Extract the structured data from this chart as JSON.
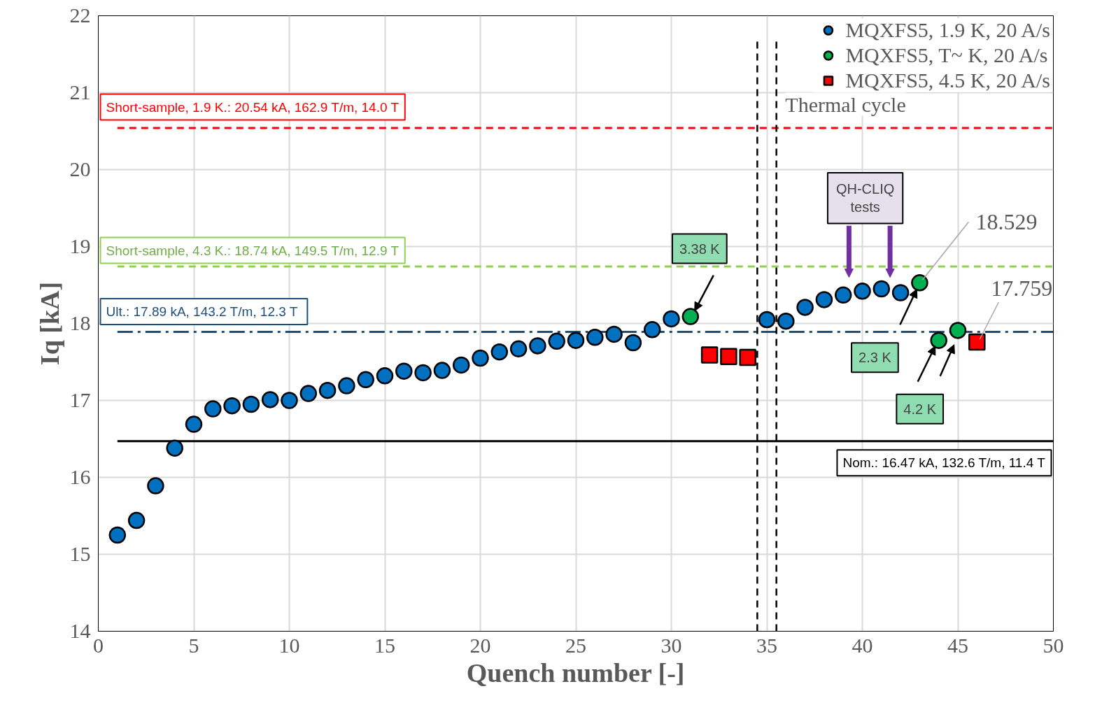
{
  "chart_data": {
    "type": "scatter",
    "xlabel": "Quench number [-]",
    "ylabel": "Iq [kA]",
    "xlim": [
      0,
      50
    ],
    "ylim": [
      14,
      22
    ],
    "xticks": [
      0,
      5,
      10,
      15,
      20,
      25,
      30,
      35,
      40,
      45,
      50
    ],
    "yticks": [
      14,
      15,
      16,
      17,
      18,
      19,
      20,
      21,
      22
    ],
    "grid": true,
    "legend": "top right",
    "series": [
      {
        "name": "MQXFS5, 1.9 K, 20 A/s",
        "color": "#0070c0",
        "marker": "circle",
        "x": [
          1,
          2,
          3,
          4,
          5,
          6,
          7,
          8,
          9,
          10,
          11,
          12,
          13,
          14,
          15,
          16,
          17,
          18,
          19,
          20,
          21,
          22,
          23,
          24,
          25,
          26,
          27,
          28,
          29,
          30,
          35,
          36,
          37,
          38,
          39,
          40,
          41,
          42
        ],
        "values": [
          15.25,
          15.44,
          15.89,
          16.38,
          16.69,
          16.89,
          16.93,
          16.95,
          17.01,
          17.0,
          17.09,
          17.13,
          17.19,
          17.27,
          17.32,
          17.38,
          17.36,
          17.39,
          17.46,
          17.55,
          17.63,
          17.67,
          17.71,
          17.77,
          17.78,
          17.82,
          17.86,
          17.75,
          17.92,
          18.06,
          18.05,
          18.03,
          18.21,
          18.31,
          18.37,
          18.42,
          18.45,
          18.4
        ]
      },
      {
        "name": "MQXFS5, T~ K, 20 A/s",
        "color": "#00b050",
        "marker": "circle",
        "x": [
          31,
          43,
          44,
          45
        ],
        "values": [
          18.09,
          18.529,
          17.78,
          17.91
        ]
      },
      {
        "name": "MQXFS5, 4.5 K, 20 A/s",
        "color": "#ff0000",
        "marker": "square",
        "x": [
          32,
          33,
          34,
          46
        ],
        "values": [
          17.59,
          17.57,
          17.56,
          17.759
        ]
      }
    ],
    "ref_lines": [
      {
        "axis": "y",
        "value": 20.54,
        "label": "Short-sample, 1.9 K.: 20.54 kA, 162.9 T/m, 14.0 T",
        "color": "#ff0000",
        "line_style": "dashed"
      },
      {
        "axis": "y",
        "value": 18.74,
        "label": "Short-sample, 4.3 K.: 18.74 kA, 149.5 T/m, 12.9 T",
        "color": "#92d050",
        "line_style": "dashed"
      },
      {
        "axis": "y",
        "value": 17.89,
        "label": "Ult.: 17.89 kA, 143.2  T/m, 12.3 T",
        "color": "#1f4e79",
        "line_style": "dashdot"
      },
      {
        "axis": "y",
        "value": 16.47,
        "label": "Nom.: 16.47 kA, 132.6 T/m, 11.4 T",
        "color": "#000000",
        "line_style": "solid"
      },
      {
        "axis": "x",
        "value": 34.5,
        "label": "Thermal cycle",
        "color": "#000000",
        "line_style": "dashed"
      },
      {
        "axis": "x",
        "value": 35.5,
        "label": null,
        "color": "#000000",
        "line_style": "dashed"
      }
    ],
    "annotations": [
      "3.38 K",
      "2.3 K",
      "4.2 K",
      {
        "text": "18.529",
        "x": 43,
        "y": 18.529
      },
      {
        "text": "17.759",
        "x": 46,
        "y": 17.759
      },
      "QH-CLIQ tests"
    ]
  }
}
